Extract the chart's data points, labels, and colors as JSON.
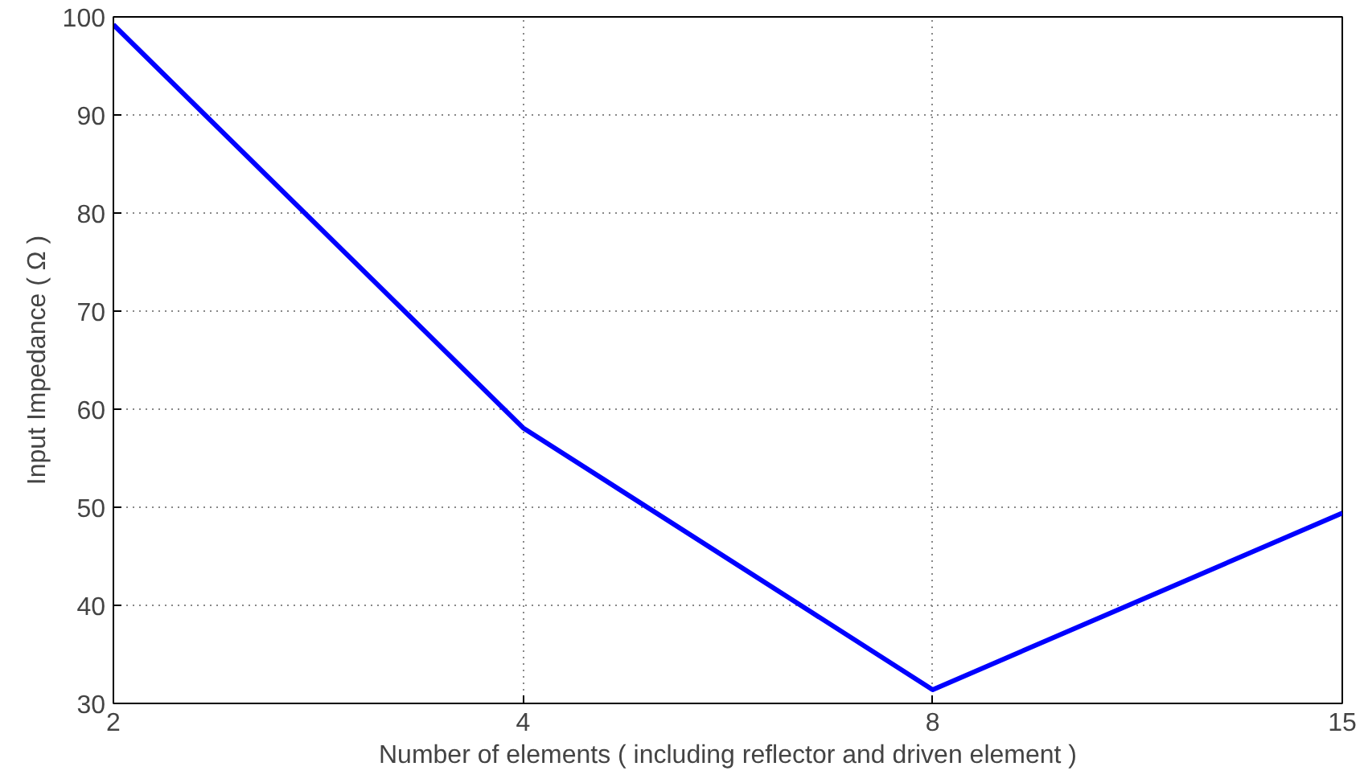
{
  "chart_data": {
    "type": "line",
    "xlabel": "Number of elements ( including reflector and driven element )",
    "ylabel": "Input Impedance ( Ω )",
    "categories": [
      "2",
      "4",
      "8",
      "15"
    ],
    "series": [
      {
        "color": "#0000ff",
        "values": [
          99.2,
          58.1,
          31.4,
          49.4
        ]
      }
    ],
    "ylim": [
      30,
      100
    ],
    "yticks": [
      30,
      40,
      50,
      60,
      70,
      80,
      90,
      100
    ],
    "grid": true,
    "line_style": "solid"
  }
}
